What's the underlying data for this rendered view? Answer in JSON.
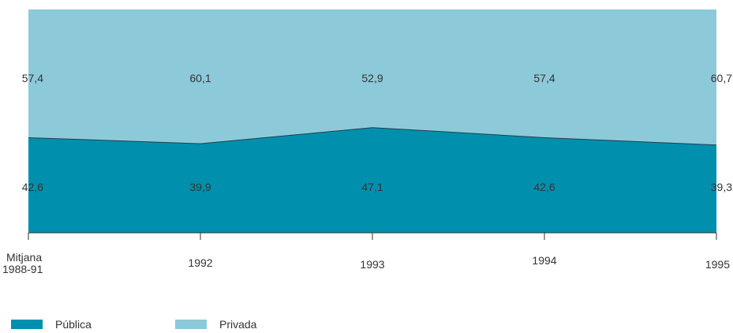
{
  "chart_data": {
    "type": "area",
    "stacked": true,
    "percent": true,
    "categories": [
      "Mitjana 1988-91",
      "1992",
      "1993",
      "1994",
      "1995"
    ],
    "series": [
      {
        "name": "Pública",
        "values": [
          42.6,
          39.9,
          47.1,
          42.6,
          39.3
        ],
        "color": "#0090ae",
        "labels": [
          "42,6",
          "39,9",
          "47,1",
          "42,6",
          "39,3"
        ]
      },
      {
        "name": "Privada",
        "values": [
          57.4,
          60.1,
          52.9,
          57.4,
          60.7
        ],
        "color": "#8ccad9",
        "labels": [
          "57,4",
          "60,1",
          "52,9",
          "57,4",
          "60,7"
        ]
      }
    ],
    "ylim": [
      0,
      100
    ],
    "legend_position": "bottom-left"
  },
  "legend": {
    "items": [
      {
        "label": "Pública",
        "color": "#0090ae"
      },
      {
        "label": "Privada",
        "color": "#8ccad9"
      }
    ]
  }
}
